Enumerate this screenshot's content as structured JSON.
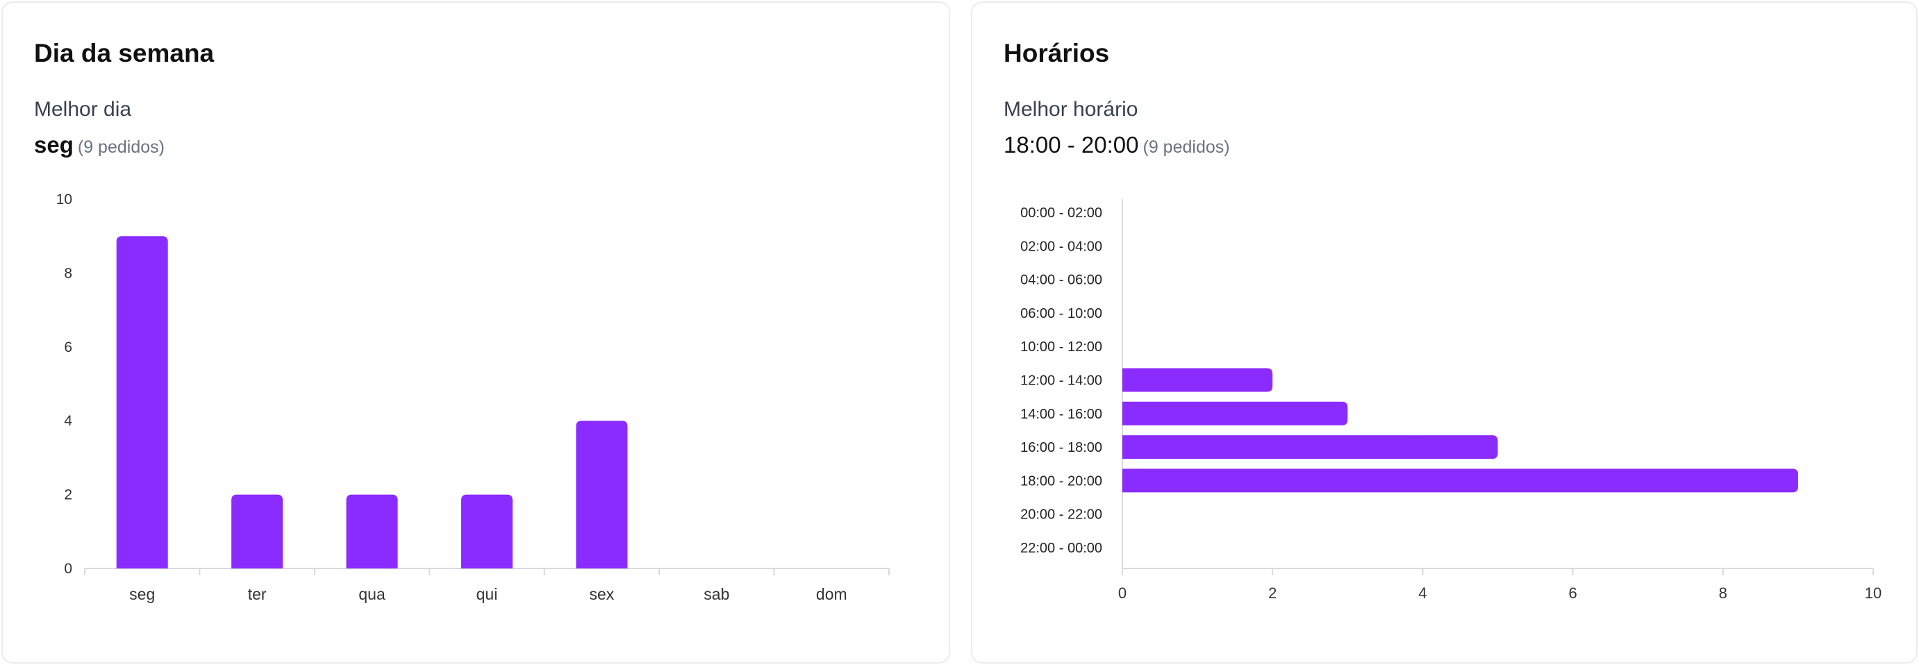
{
  "weekday_card": {
    "title": "Dia da semana",
    "best_label": "Melhor dia",
    "best_value": "seg",
    "best_count": "(9 pedidos)"
  },
  "hours_card": {
    "title": "Horários",
    "best_label": "Melhor horário",
    "best_value": "18:00 - 20:00",
    "best_count": "(9 pedidos)"
  },
  "chart_data": [
    {
      "type": "bar",
      "orientation": "vertical",
      "categories": [
        "seg",
        "ter",
        "qua",
        "qui",
        "sex",
        "sab",
        "dom"
      ],
      "values": [
        9,
        2,
        2,
        2,
        4,
        0,
        0
      ],
      "ylim": [
        0,
        10
      ],
      "yticks": [
        0,
        2,
        4,
        6,
        8,
        10
      ],
      "color": "#8a2bff",
      "grid": false
    },
    {
      "type": "bar",
      "orientation": "horizontal",
      "categories": [
        "00:00 - 02:00",
        "02:00 - 04:00",
        "04:00 - 06:00",
        "06:00 - 10:00",
        "10:00 - 12:00",
        "12:00 - 14:00",
        "14:00 - 16:00",
        "16:00 - 18:00",
        "18:00 - 20:00",
        "20:00 - 22:00",
        "22:00 - 00:00"
      ],
      "values": [
        0,
        0,
        0,
        0,
        0,
        2,
        3,
        5,
        9,
        0,
        0
      ],
      "xlim": [
        0,
        10
      ],
      "xticks": [
        0,
        2,
        4,
        6,
        8,
        10
      ],
      "color": "#8a2bff",
      "grid": false
    }
  ]
}
